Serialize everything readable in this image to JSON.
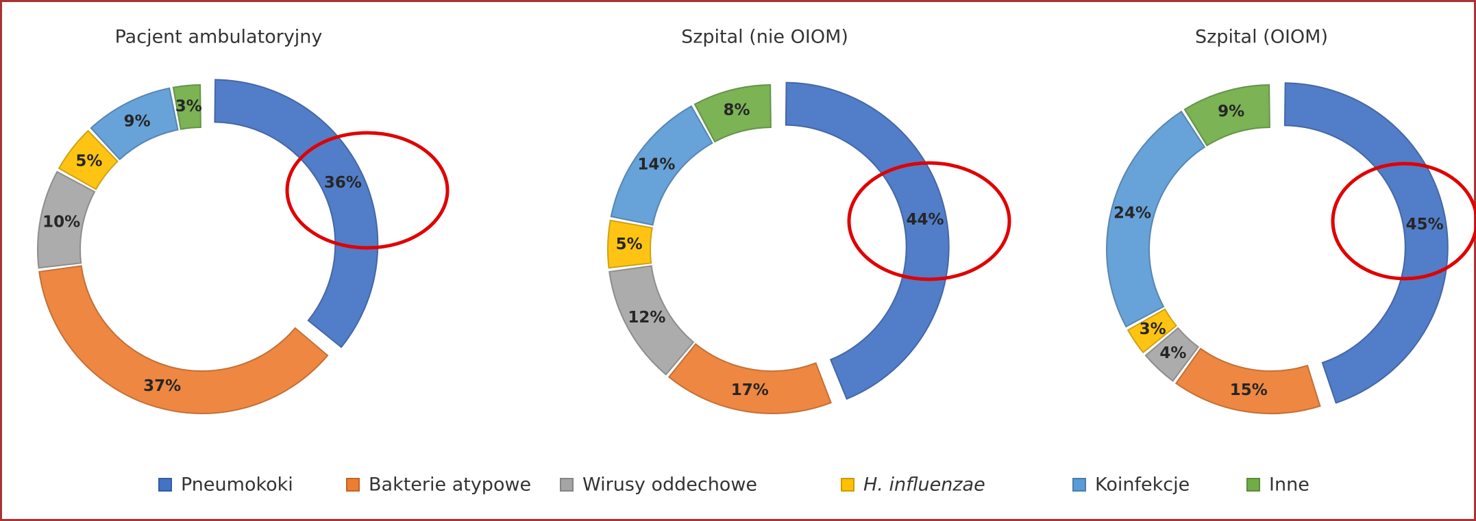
{
  "chart_data": [
    {
      "type": "donut",
      "title": "Pacjent ambulatoryjny",
      "categories": [
        "Pneumokoki",
        "Bakterie atypowe",
        "Wirusy oddechowe",
        "H. influenzae",
        "Koinfekcje",
        "Inne"
      ],
      "values": [
        36,
        37,
        10,
        5,
        9,
        3
      ],
      "value_labels": [
        "36%",
        "37%",
        "10%",
        "5%",
        "9%",
        "3%"
      ],
      "colors": [
        "#4472c4",
        "#ed7d31",
        "#a5a5a5",
        "#ffc000",
        "#5b9bd5",
        "#70ad47"
      ]
    },
    {
      "type": "donut",
      "title": "Szpital (nie OIOM)",
      "categories": [
        "Pneumokoki",
        "Bakterie atypowe",
        "Wirusy oddechowe",
        "H. influenzae",
        "Koinfekcje",
        "Inne"
      ],
      "values": [
        44,
        17,
        12,
        5,
        14,
        8
      ],
      "value_labels": [
        "44%",
        "17%",
        "12%",
        "5%",
        "14%",
        "8%"
      ],
      "colors": [
        "#4472c4",
        "#ed7d31",
        "#a5a5a5",
        "#ffc000",
        "#5b9bd5",
        "#70ad47"
      ]
    },
    {
      "type": "donut",
      "title": "Szpital (OIOM)",
      "categories": [
        "Pneumokoki",
        "Bakterie atypowe",
        "Wirusy oddechowe",
        "H. influenzae",
        "Koinfekcje",
        "Inne"
      ],
      "values": [
        45,
        15,
        4,
        3,
        24,
        9
      ],
      "value_labels": [
        "45%",
        "15%",
        "4%",
        "3%",
        "24%",
        "9%"
      ],
      "colors": [
        "#4472c4",
        "#ed7d31",
        "#a5a5a5",
        "#ffc000",
        "#5b9bd5",
        "#70ad47"
      ]
    }
  ]
}
